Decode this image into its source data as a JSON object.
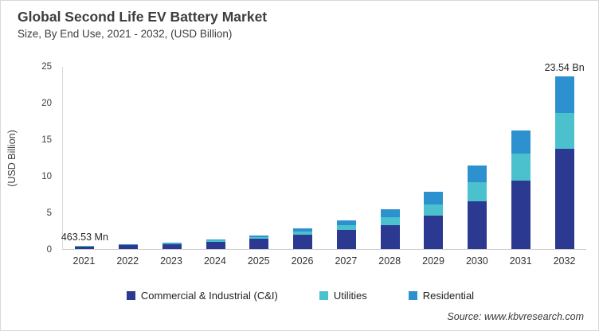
{
  "header": {
    "title": "Global Second Life EV Battery Market",
    "subtitle": "Size, By End Use, 2021 - 2032, (USD Billion)"
  },
  "chart_data": {
    "type": "bar",
    "stacked": true,
    "title": "Global Second Life EV Battery Market Size, By End Use, 2021 - 2032, (USD Billion)",
    "xlabel": "",
    "ylabel": "(USD Billion)",
    "ylim": [
      0,
      25
    ],
    "yticks": [
      0,
      5,
      10,
      15,
      20,
      25
    ],
    "grid": false,
    "legend_position": "bottom",
    "categories": [
      "2021",
      "2022",
      "2023",
      "2024",
      "2025",
      "2026",
      "2027",
      "2028",
      "2029",
      "2030",
      "2031",
      "2032"
    ],
    "series": [
      {
        "name": "Commercial & Industrial (C&I)",
        "color": "#2b3990",
        "values": [
          0.36,
          0.5,
          0.7,
          1.0,
          1.4,
          2.0,
          2.6,
          3.3,
          4.6,
          6.5,
          9.4,
          13.7
        ]
      },
      {
        "name": "Utilities",
        "color": "#4bc1ce",
        "values": [
          0.05,
          0.08,
          0.11,
          0.18,
          0.26,
          0.4,
          0.65,
          1.0,
          1.5,
          2.6,
          3.6,
          4.9
        ]
      },
      {
        "name": "Residential",
        "color": "#2d91d0",
        "values": [
          0.05,
          0.07,
          0.11,
          0.17,
          0.24,
          0.4,
          0.65,
          1.1,
          1.7,
          2.3,
          3.2,
          4.94
        ]
      }
    ],
    "totals": [
      0.46,
      0.65,
      0.92,
      1.35,
      1.9,
      2.8,
      3.9,
      5.4,
      7.8,
      11.4,
      16.2,
      23.54
    ],
    "annotations": [
      {
        "category": "2021",
        "text": "463.53 Mn"
      },
      {
        "category": "2032",
        "text": "23.54 Bn"
      }
    ]
  },
  "footer": {
    "source": "Source: www.kbvresearch.com"
  }
}
